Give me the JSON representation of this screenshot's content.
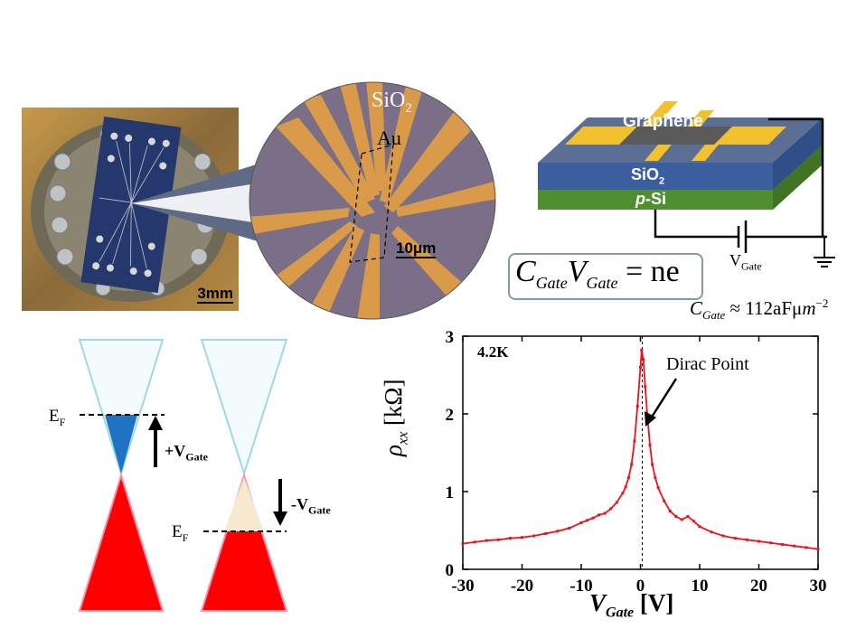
{
  "photo": {
    "scale_label": "3mm"
  },
  "micrograph": {
    "oxide_label": "SiO",
    "oxide_sub": "2",
    "metal_label": "Au",
    "scale_label": "10μm"
  },
  "device": {
    "graphene_label": "Graphene",
    "oxide_label": "SiO",
    "oxide_sub": "2",
    "substrate_italic": "p",
    "substrate_rest": "-Si",
    "voltage_label": "V",
    "voltage_sub": "Gate",
    "colors": {
      "gold": "#f2c12e",
      "oxide": "#3b5f9e",
      "silicon": "#4f8f2f",
      "top": "#5a6f93"
    }
  },
  "equation": {
    "lhs1": "C",
    "lhs1_sub": "Gate",
    "lhs2": "V",
    "lhs2_sub": "Gate",
    "rhs": "= ne",
    "cap_c": "C",
    "cap_sub": "Gate",
    "cap_rest": "≈ 112aFμ",
    "cap_m": "m",
    "cap_exp": "−2"
  },
  "bands": {
    "left": {
      "ef": "E",
      "ef_sub": "F",
      "arrow": "+V",
      "arrow_sub": "Gate"
    },
    "right": {
      "ef": "E",
      "ef_sub": "F",
      "arrow": "-V",
      "arrow_sub": "Gate"
    },
    "colors": {
      "cone_outline": "#9fd8e6",
      "filled_electrons": "#1f73c2",
      "valence": "#ff0000",
      "holes": "#f7e9cf"
    }
  },
  "chart_data": {
    "type": "line",
    "temperature_label": "4.2K",
    "annotation": "Dirac Point",
    "xlabel": "V",
    "xlabel_sub": "Gate",
    "xlabel_unit": "[V]",
    "ylabel": "ρ",
    "ylabel_sub": "xx",
    "ylabel_unit": "[kΩ]",
    "xlim": [
      -30,
      30
    ],
    "ylim": [
      0,
      3
    ],
    "xticks": [
      -30,
      -20,
      -10,
      0,
      10,
      20,
      30
    ],
    "yticks": [
      0,
      1,
      2,
      3
    ],
    "dirac_x": 0.3,
    "color": "#e8141b",
    "series": [
      {
        "x": [
          -30,
          -28,
          -26,
          -24,
          -22,
          -20,
          -18,
          -16,
          -14,
          -12,
          -10,
          -9,
          -8,
          -7,
          -6,
          -5,
          -4,
          -3,
          -2.5,
          -2,
          -1.5,
          -1,
          -0.5,
          0,
          0.2,
          0.5,
          0.8,
          1.2,
          1.6,
          2,
          2.5,
          3,
          4,
          5,
          6,
          7,
          8,
          9,
          10,
          12,
          14,
          16,
          18,
          20,
          22,
          24,
          26,
          28,
          30
        ],
        "y": [
          0.33,
          0.35,
          0.37,
          0.38,
          0.4,
          0.41,
          0.43,
          0.46,
          0.49,
          0.53,
          0.6,
          0.63,
          0.66,
          0.7,
          0.72,
          0.78,
          0.86,
          0.98,
          1.06,
          1.18,
          1.35,
          1.65,
          2.1,
          2.6,
          2.82,
          2.7,
          2.35,
          1.95,
          1.6,
          1.35,
          1.18,
          1.05,
          0.88,
          0.75,
          0.68,
          0.64,
          0.68,
          0.62,
          0.55,
          0.48,
          0.43,
          0.4,
          0.38,
          0.36,
          0.34,
          0.32,
          0.3,
          0.28,
          0.26
        ]
      }
    ]
  }
}
